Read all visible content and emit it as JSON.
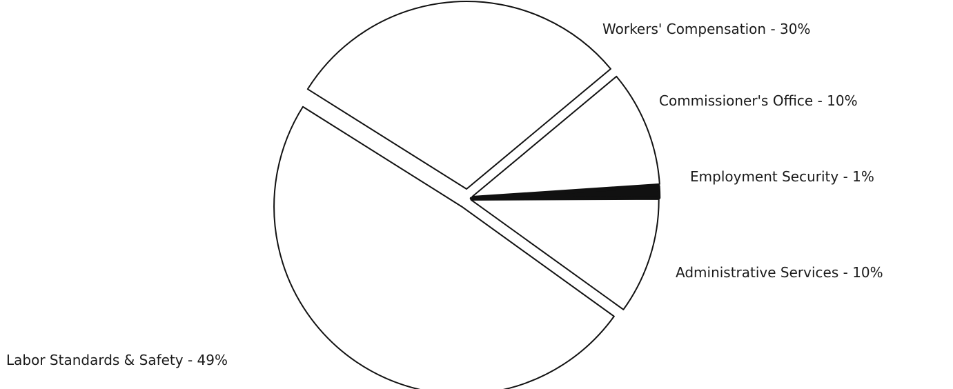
{
  "chart_data": {
    "type": "pie",
    "title": "",
    "slices": [
      {
        "label": "Workers' Compensation - 30%",
        "category": "Workers' Compensation",
        "value": 30
      },
      {
        "label": "Commissioner's Office - 10%",
        "category": "Commissioner's Office",
        "value": 10
      },
      {
        "label": "Employment Security - 1%",
        "category": "Employment Security",
        "value": 1
      },
      {
        "label": "Administrative Services - 10%",
        "category": "Administrative Services",
        "value": 10
      },
      {
        "label": "Labor Standards & Safety - 49%",
        "category": "Labor Standards & Safety",
        "value": 49
      }
    ],
    "colors": {
      "fill": "#ffffff",
      "stroke": "#111111",
      "text": "#1a1a1a"
    },
    "exploded_slices": [
      "Workers' Compensation",
      "Labor Standards & Safety"
    ],
    "legend": "none"
  }
}
